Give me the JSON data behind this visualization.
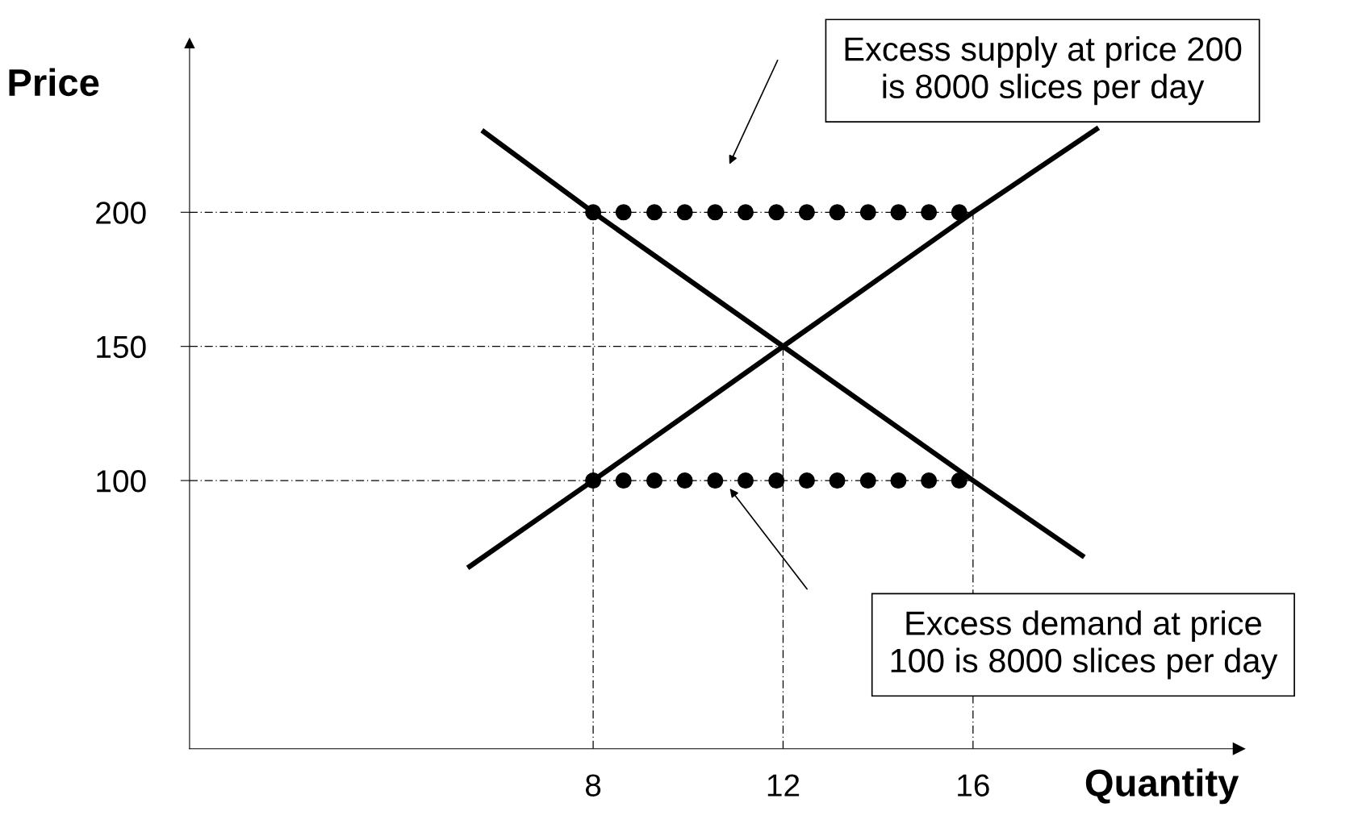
{
  "chart_data": {
    "type": "line",
    "xlabel": "Quantity",
    "ylabel": "Price",
    "xlim": [
      -0.5,
      21.6
    ],
    "ylim": [
      0,
      263
    ],
    "xticks": [
      8,
      12,
      16
    ],
    "yticks": [
      100,
      150,
      200
    ],
    "grid": false,
    "series": [
      {
        "type": "line",
        "color": "#000000",
        "line_style": "dashed",
        "x": [
          -0.5,
          16
        ],
        "values": [
          200,
          200
        ]
      },
      {
        "type": "line",
        "color": "#000000",
        "line_style": "dashed",
        "x": [
          -0.5,
          12
        ],
        "values": [
          150,
          150
        ]
      },
      {
        "type": "line",
        "color": "#000000",
        "line_style": "dashed",
        "x": [
          -0.5,
          16
        ],
        "values": [
          100,
          100
        ]
      },
      {
        "type": "line",
        "color": "#000000",
        "line_style": "dashed",
        "x": [
          8,
          8
        ],
        "values": [
          0,
          200
        ]
      },
      {
        "type": "line",
        "color": "#000000",
        "line_style": "dashed",
        "x": [
          12,
          12
        ],
        "values": [
          0,
          150
        ]
      },
      {
        "type": "line",
        "color": "#000000",
        "line_style": "dashed",
        "x": [
          16,
          16
        ],
        "values": [
          0,
          200
        ]
      },
      {
        "color": "#000000",
        "line_style": "solid",
        "x": [
          5.7,
          8,
          12,
          16,
          18.3
        ],
        "values": [
          230,
          200,
          150,
          100,
          72
        ]
      },
      {
        "color": "#000000",
        "line_style": "solid",
        "x": [
          5.4,
          8,
          12,
          16,
          18.6
        ],
        "values": [
          68,
          100,
          150,
          200,
          231
        ]
      },
      {
        "type": "scatter",
        "color": "#000000",
        "marker": "circle",
        "x": [
          8,
          8.64,
          9.29,
          9.93,
          10.57,
          11.21,
          11.86,
          12.5,
          13.14,
          13.79,
          14.43,
          15.07,
          15.71
        ],
        "values": [
          200,
          200,
          200,
          200,
          200,
          200,
          200,
          200,
          200,
          200,
          200,
          200,
          200
        ]
      },
      {
        "type": "scatter",
        "color": "#000000",
        "marker": "circle",
        "x": [
          8,
          8.64,
          9.29,
          9.93,
          10.57,
          11.21,
          11.86,
          12.5,
          13.14,
          13.79,
          14.43,
          15.07,
          15.71
        ],
        "values": [
          100,
          100,
          100,
          100,
          100,
          100,
          100,
          100,
          100,
          100,
          100,
          100,
          100
        ]
      }
    ],
    "annotations": [
      "Excess supply at price 200\nis 8000 slices per day",
      "Excess demand at price\n100 is 8000 slices per day"
    ]
  }
}
